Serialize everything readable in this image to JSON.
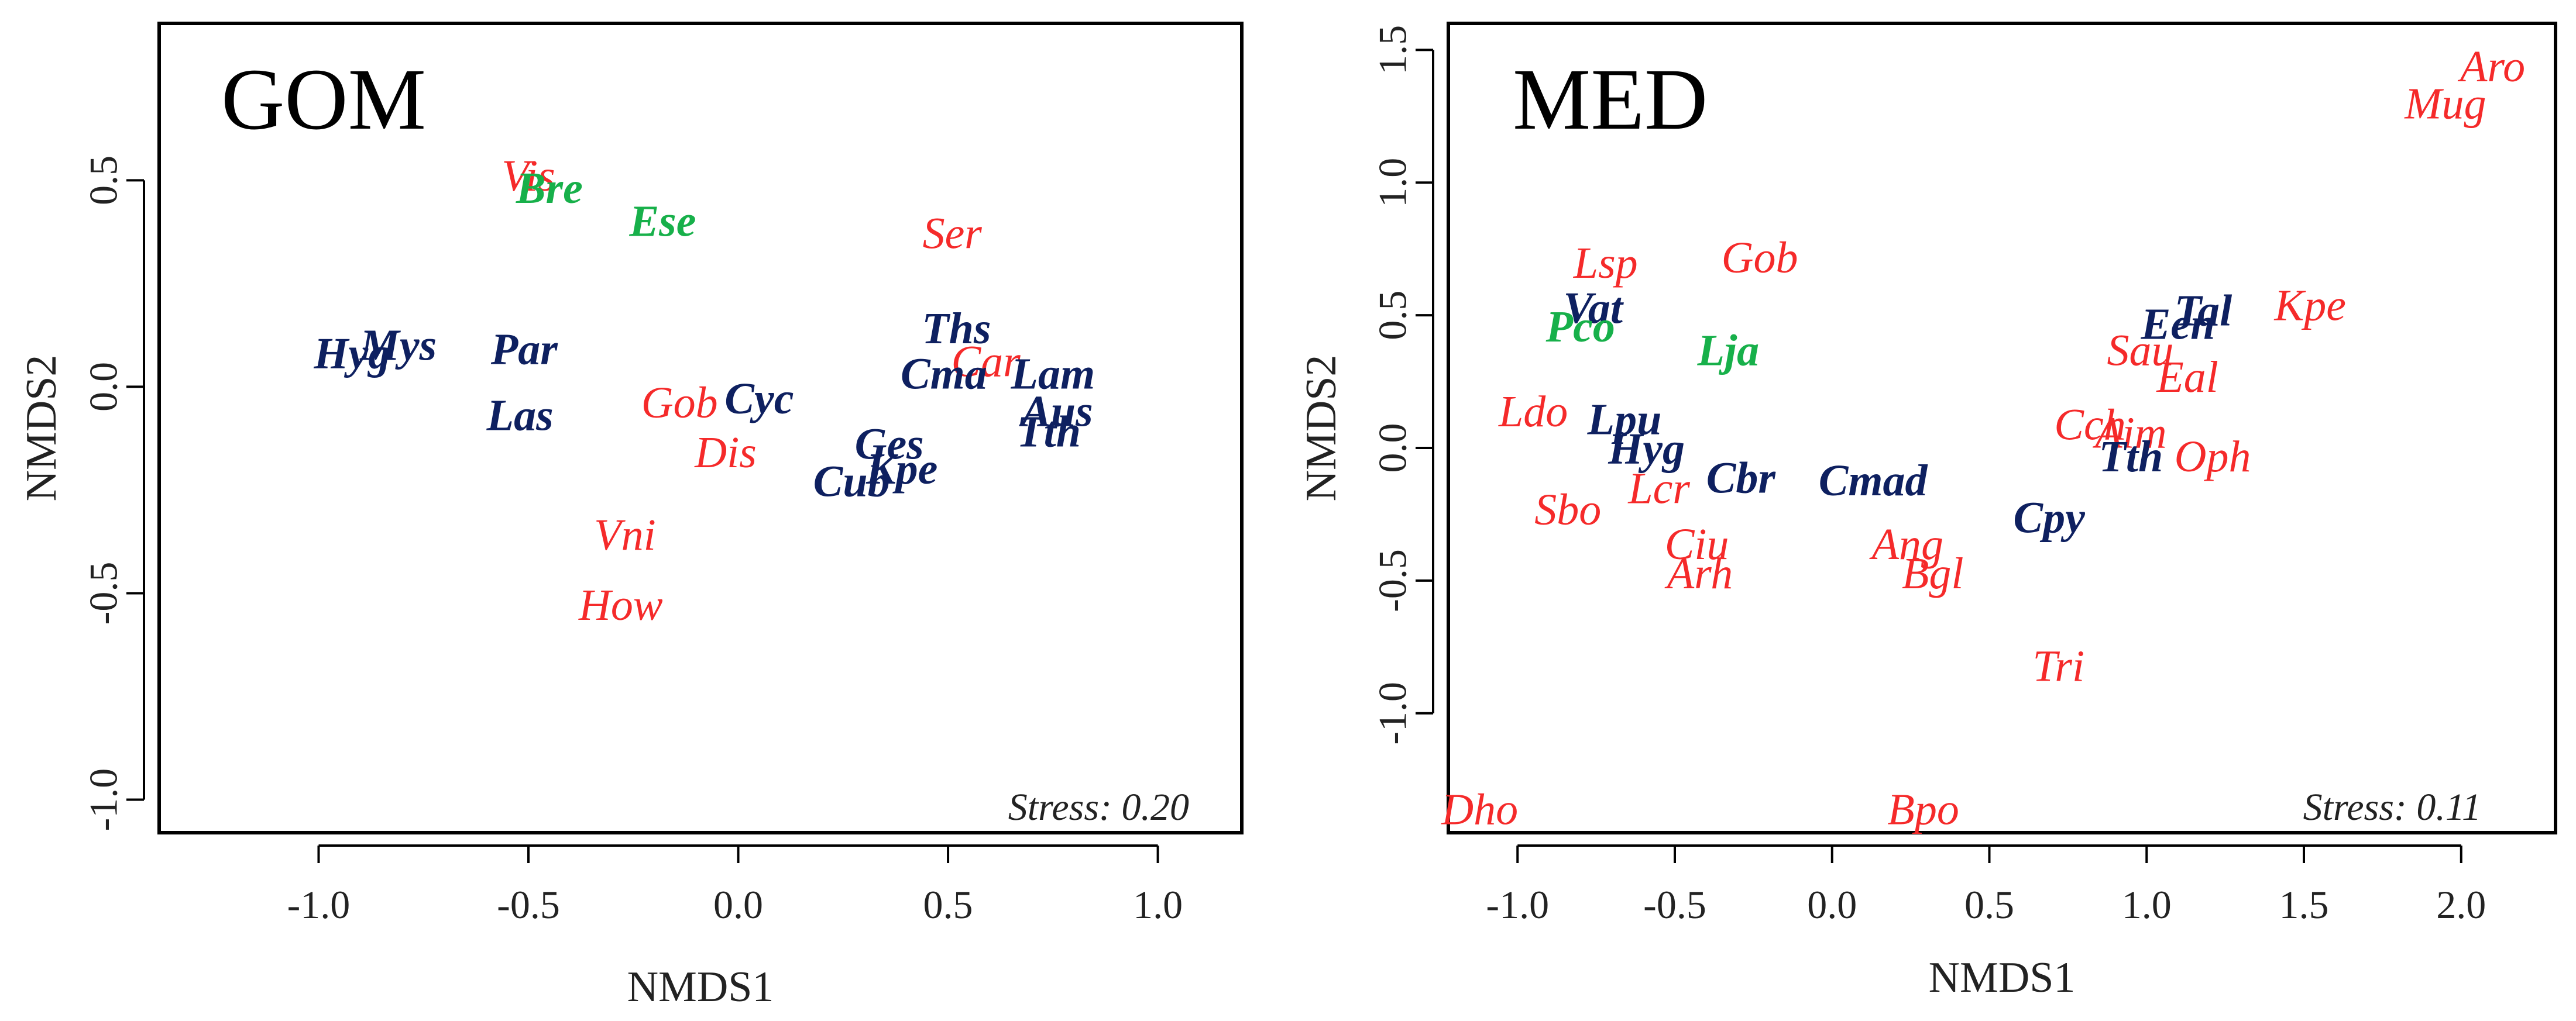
{
  "colors": {
    "red": "#f52a2a",
    "navy": "#0e2060",
    "green": "#17b04a",
    "axis": "#000000"
  },
  "chart_data": [
    {
      "type": "scatter",
      "title": "GOM",
      "xlabel": "NMDS1",
      "ylabel": "NMDS2",
      "xlim": [
        -1.38,
        1.2
      ],
      "ylim": [
        -1.08,
        0.88
      ],
      "xticks": [
        -1.0,
        -0.5,
        0.0,
        0.5,
        1.0
      ],
      "xtick_labels": [
        "-1.0",
        "-0.5",
        "0.0",
        "0.5",
        "1.0"
      ],
      "yticks": [
        -1.0,
        -0.5,
        0.0,
        0.5
      ],
      "ytick_labels": [
        "-1.0",
        "-0.5",
        "0.0",
        "0.5"
      ],
      "stress": "Stress: 0.20",
      "grid": false,
      "points": [
        {
          "label": "Vis",
          "x": -0.5,
          "y": 0.5,
          "color": "red"
        },
        {
          "label": "Bre",
          "x": -0.45,
          "y": 0.47,
          "color": "green"
        },
        {
          "label": "Ese",
          "x": -0.18,
          "y": 0.39,
          "color": "green"
        },
        {
          "label": "Ser",
          "x": 0.51,
          "y": 0.36,
          "color": "red"
        },
        {
          "label": "Mys",
          "x": -0.81,
          "y": 0.09,
          "color": "navy"
        },
        {
          "label": "Hyg",
          "x": -0.92,
          "y": 0.07,
          "color": "navy"
        },
        {
          "label": "Par",
          "x": -0.51,
          "y": 0.08,
          "color": "navy"
        },
        {
          "label": "Ths",
          "x": 0.52,
          "y": 0.13,
          "color": "navy"
        },
        {
          "label": "Car",
          "x": 0.59,
          "y": 0.05,
          "color": "red"
        },
        {
          "label": "Cma",
          "x": 0.49,
          "y": 0.02,
          "color": "navy"
        },
        {
          "label": "Lam",
          "x": 0.75,
          "y": 0.02,
          "color": "navy"
        },
        {
          "label": "Gob",
          "x": -0.14,
          "y": -0.05,
          "color": "red"
        },
        {
          "label": "Cyc",
          "x": 0.05,
          "y": -0.04,
          "color": "navy"
        },
        {
          "label": "Aus",
          "x": 0.76,
          "y": -0.07,
          "color": "navy"
        },
        {
          "label": "Tth",
          "x": 0.74,
          "y": -0.12,
          "color": "navy"
        },
        {
          "label": "Las",
          "x": -0.52,
          "y": -0.08,
          "color": "navy"
        },
        {
          "label": "Dis",
          "x": -0.03,
          "y": -0.17,
          "color": "red"
        },
        {
          "label": "Ges",
          "x": 0.36,
          "y": -0.15,
          "color": "navy"
        },
        {
          "label": "Kpe",
          "x": 0.39,
          "y": -0.21,
          "color": "navy"
        },
        {
          "label": "Cub",
          "x": 0.27,
          "y": -0.24,
          "color": "navy"
        },
        {
          "label": "Vni",
          "x": -0.27,
          "y": -0.37,
          "color": "red"
        },
        {
          "label": "How",
          "x": -0.28,
          "y": -0.54,
          "color": "red"
        }
      ]
    },
    {
      "type": "scatter",
      "title": "MED",
      "xlabel": "NMDS1",
      "ylabel": "NMDS2",
      "xlim": [
        -1.22,
        2.3
      ],
      "ylim": [
        -1.45,
        1.6
      ],
      "xticks": [
        -1.0,
        -0.5,
        0.0,
        0.5,
        1.0,
        1.5,
        2.0
      ],
      "xtick_labels": [
        "-1.0",
        "-0.5",
        "0.0",
        "0.5",
        "1.0",
        "1.5",
        "2.0"
      ],
      "yticks": [
        -1.0,
        -0.5,
        0.0,
        0.5,
        1.0,
        1.5
      ],
      "ytick_labels": [
        "-1.0",
        "-0.5",
        "0.0",
        "0.5",
        "1.0",
        "1.5"
      ],
      "stress": "Stress: 0.11",
      "grid": false,
      "points": [
        {
          "label": "Aro",
          "x": 2.1,
          "y": 1.42,
          "color": "red"
        },
        {
          "label": "Mug",
          "x": 1.95,
          "y": 1.28,
          "color": "red"
        },
        {
          "label": "Lsp",
          "x": -0.72,
          "y": 0.68,
          "color": "red"
        },
        {
          "label": "Gob",
          "x": -0.23,
          "y": 0.7,
          "color": "red"
        },
        {
          "label": "Vat",
          "x": -0.76,
          "y": 0.51,
          "color": "navy"
        },
        {
          "label": "Pco",
          "x": -0.8,
          "y": 0.44,
          "color": "green"
        },
        {
          "label": "Lja",
          "x": -0.33,
          "y": 0.35,
          "color": "green"
        },
        {
          "label": "Tal",
          "x": 1.18,
          "y": 0.5,
          "color": "navy"
        },
        {
          "label": "Een",
          "x": 1.1,
          "y": 0.45,
          "color": "navy"
        },
        {
          "label": "Kpe",
          "x": 1.52,
          "y": 0.52,
          "color": "red"
        },
        {
          "label": "Sau",
          "x": 0.98,
          "y": 0.35,
          "color": "red"
        },
        {
          "label": "Eal",
          "x": 1.13,
          "y": 0.25,
          "color": "red"
        },
        {
          "label": "Ldo",
          "x": -0.95,
          "y": 0.12,
          "color": "red"
        },
        {
          "label": "Lpu",
          "x": -0.66,
          "y": 0.09,
          "color": "navy"
        },
        {
          "label": "Cch",
          "x": 0.82,
          "y": 0.07,
          "color": "red"
        },
        {
          "label": "Aim",
          "x": 0.95,
          "y": 0.04,
          "color": "red"
        },
        {
          "label": "Hyg",
          "x": -0.59,
          "y": -0.02,
          "color": "navy"
        },
        {
          "label": "Tth",
          "x": 0.95,
          "y": -0.05,
          "color": "navy"
        },
        {
          "label": "Oph",
          "x": 1.21,
          "y": -0.05,
          "color": "red"
        },
        {
          "label": "Cbr",
          "x": -0.29,
          "y": -0.13,
          "color": "navy"
        },
        {
          "label": "Cmad",
          "x": 0.13,
          "y": -0.14,
          "color": "navy"
        },
        {
          "label": "Lcr",
          "x": -0.55,
          "y": -0.17,
          "color": "red"
        },
        {
          "label": "Sbo",
          "x": -0.84,
          "y": -0.25,
          "color": "red"
        },
        {
          "label": "Cpy",
          "x": 0.69,
          "y": -0.28,
          "color": "navy"
        },
        {
          "label": "Ciu",
          "x": -0.43,
          "y": -0.38,
          "color": "red"
        },
        {
          "label": "Ang",
          "x": 0.24,
          "y": -0.38,
          "color": "red"
        },
        {
          "label": "Arh",
          "x": -0.42,
          "y": -0.49,
          "color": "red"
        },
        {
          "label": "Bgl",
          "x": 0.32,
          "y": -0.49,
          "color": "red"
        },
        {
          "label": "Tri",
          "x": 0.72,
          "y": -0.84,
          "color": "red"
        },
        {
          "label": "Dho",
          "x": -1.12,
          "y": -1.38,
          "color": "red"
        },
        {
          "label": "Bpo",
          "x": 0.29,
          "y": -1.38,
          "color": "red"
        }
      ]
    }
  ]
}
